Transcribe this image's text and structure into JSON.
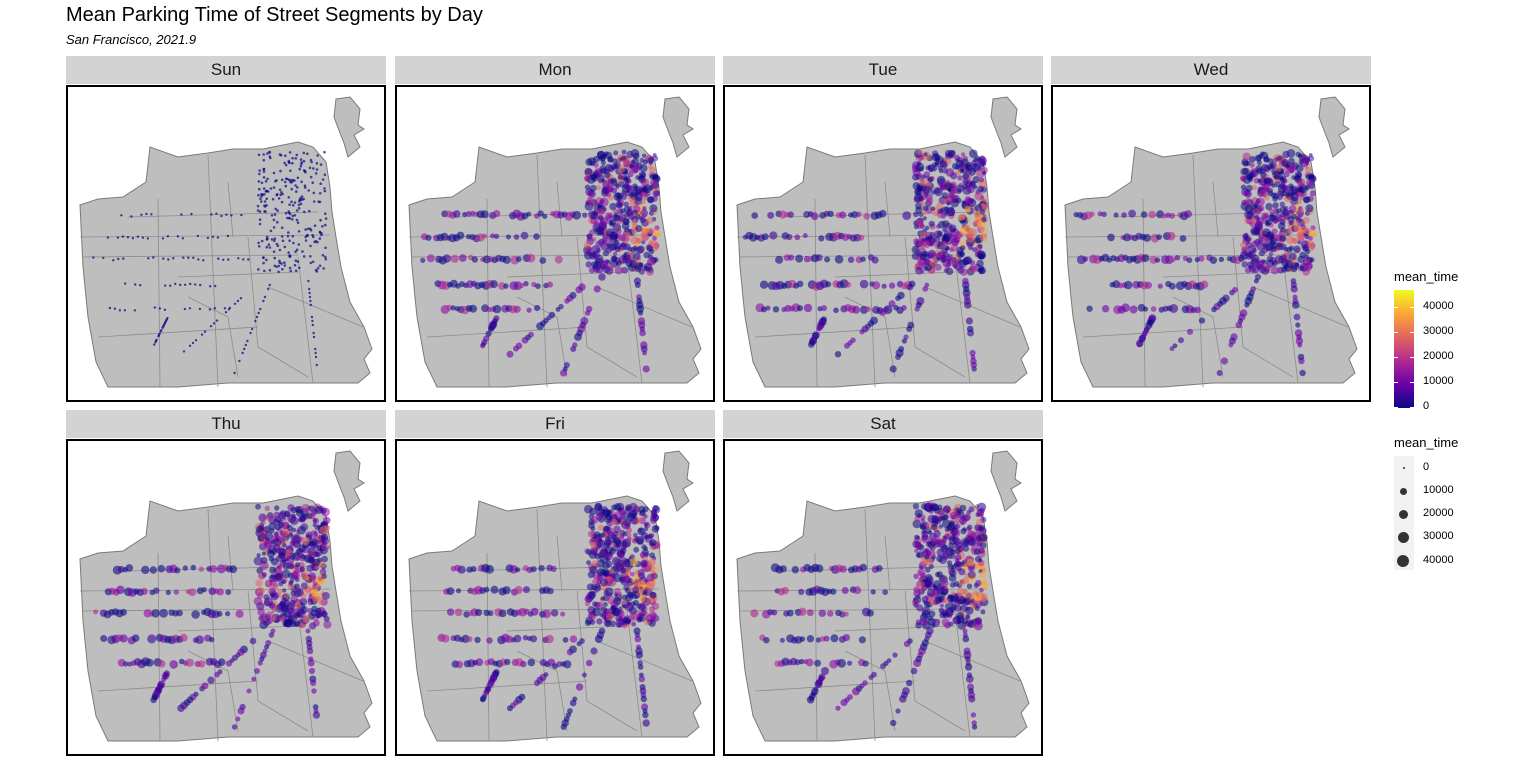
{
  "title": "Mean Parking Time of Street Segments by Day",
  "subtitle": "San Francisco, 2021.9",
  "panels": [
    {
      "label": "Sun"
    },
    {
      "label": "Mon"
    },
    {
      "label": "Tue"
    },
    {
      "label": "Wed"
    },
    {
      "label": "Thu"
    },
    {
      "label": "Fri"
    },
    {
      "label": "Sat"
    }
  ],
  "legend_color": {
    "title": "mean_time",
    "ticks": [
      "40000",
      "30000",
      "20000",
      "10000",
      "0"
    ],
    "palette": [
      "#0d0887",
      "#6a00a8",
      "#b12a90",
      "#e16462",
      "#fca636",
      "#f0f921"
    ]
  },
  "legend_size": {
    "title": "mean_time",
    "ticks": [
      "0",
      "10000",
      "20000",
      "30000",
      "40000"
    ]
  },
  "colors": {
    "land": "#bebebe",
    "border": "#8c8c8c",
    "strip": "#d3d3d3"
  }
}
